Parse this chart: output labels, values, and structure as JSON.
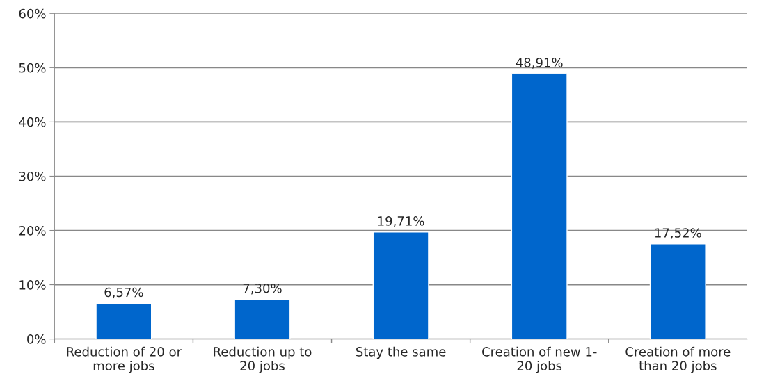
{
  "chart_data": {
    "type": "bar",
    "categories": [
      "Reduction of 20 or\nmore jobs",
      "Reduction up to\n20 jobs",
      "Stay the same",
      "Creation of new 1-\n20 jobs",
      "Creation of more\nthan 20 jobs"
    ],
    "values": [
      6.57,
      7.3,
      19.71,
      48.91,
      17.52
    ],
    "value_labels": [
      "6,57%",
      "7,30%",
      "19,71%",
      "48,91%",
      "17,52%"
    ],
    "color": "#0066cc",
    "ylim": [
      0,
      60
    ],
    "yticks": [
      {
        "value": 0,
        "label": "0%"
      },
      {
        "value": 10,
        "label": "10%"
      },
      {
        "value": 20,
        "label": "20%"
      },
      {
        "value": 30,
        "label": "30%"
      },
      {
        "value": 40,
        "label": "40%"
      },
      {
        "value": 50,
        "label": "50%"
      },
      {
        "value": 60,
        "label": "60%"
      }
    ],
    "grid": "y"
  }
}
